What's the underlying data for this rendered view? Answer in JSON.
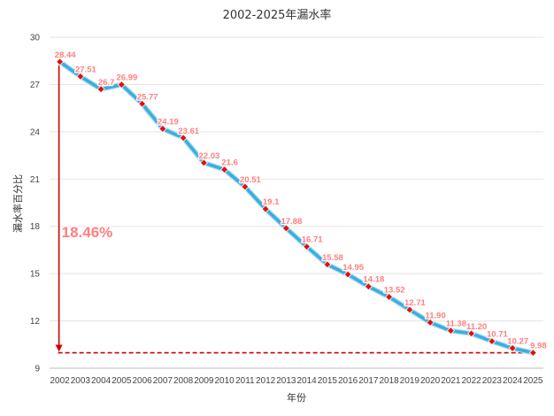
{
  "chart_data": {
    "type": "line",
    "title": "2002-2025年漏水率",
    "xlabel": "年份",
    "ylabel": "漏水率百分比",
    "ylim": [
      9,
      30
    ],
    "yticks": [
      "9",
      "12",
      "15",
      "18",
      "21",
      "24",
      "27",
      "30"
    ],
    "grid": true,
    "categories": [
      "2002",
      "2003",
      "2004",
      "2005",
      "2006",
      "2007",
      "2008",
      "2009",
      "2010",
      "2011",
      "2012",
      "2013",
      "2014",
      "2015",
      "2016",
      "2017",
      "2018",
      "2019",
      "2020",
      "2021",
      "2022",
      "2023",
      "2024",
      "2025"
    ],
    "values": [
      28.44,
      27.51,
      26.7,
      26.99,
      25.77,
      24.19,
      23.61,
      22.03,
      21.6,
      20.51,
      19.1,
      17.88,
      16.71,
      15.58,
      14.95,
      14.18,
      13.52,
      12.71,
      11.9,
      11.38,
      11.2,
      10.71,
      10.27,
      9.98
    ],
    "labels": [
      "28.44",
      "27.51",
      "26.7",
      "26.99",
      "25.77",
      "24.19",
      "23.61",
      "22.03",
      "21.6",
      "20.51",
      "19.1",
      "17.88",
      "16.71",
      "15.58",
      "14.95",
      "14.18",
      "13.52",
      "12.71",
      "11.90",
      "11.38",
      "11.20",
      "10.71",
      "10.27",
      "9.98"
    ],
    "annotation": {
      "text": "18.46%",
      "from": 28.44,
      "to": 9.98
    },
    "colors": {
      "line": "#3aaede",
      "line_outline": "#b0dcef",
      "marker": "#e01010",
      "annotation": "#d00000",
      "label": "#ff7f7f",
      "grid": "#e3e3e3"
    }
  }
}
